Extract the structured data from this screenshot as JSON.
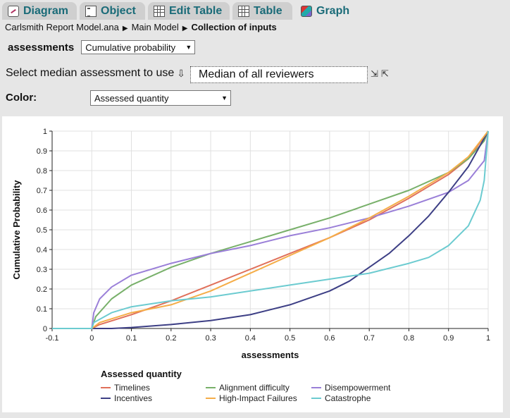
{
  "tabs": [
    {
      "label": "Diagram",
      "icon": "diagram-icon",
      "active": false
    },
    {
      "label": "Object",
      "icon": "object-icon",
      "active": false
    },
    {
      "label": "Edit Table",
      "icon": "table-icon",
      "active": false
    },
    {
      "label": "Table",
      "icon": "table-icon",
      "active": false
    },
    {
      "label": "Graph",
      "icon": "graph-icon",
      "active": true
    }
  ],
  "breadcrumb": {
    "items": [
      "Carlsmith Report Model.ana",
      "Main Model",
      "Collection of inputs"
    ]
  },
  "assessments": {
    "label": "assessments",
    "view_value": "Cumulative probability"
  },
  "median": {
    "label": "Select median assessment to use",
    "value": "Median of all reviewers"
  },
  "color": {
    "label": "Color:",
    "value": "Assessed quantity"
  },
  "chart_data": {
    "type": "line",
    "xlabel": "assessments",
    "ylabel": "Cumulative Probability",
    "xlim": [
      -0.1,
      1
    ],
    "ylim": [
      0,
      1
    ],
    "xticks": [
      "-0.1",
      "0",
      "0.1",
      "0.2",
      "0.3",
      "0.4",
      "0.5",
      "0.6",
      "0.7",
      "0.8",
      "0.9",
      "1"
    ],
    "yticks": [
      "0",
      "0.1",
      "0.2",
      "0.3",
      "0.4",
      "0.5",
      "0.6",
      "0.7",
      "0.8",
      "0.9",
      "1"
    ],
    "grid": true,
    "legend_title": "Assessed quantity",
    "legend_position": "bottom",
    "series": [
      {
        "name": "Timelines",
        "color": "#e0705a",
        "x": [
          -0.1,
          0,
          0.02,
          0.1,
          0.2,
          0.3,
          0.4,
          0.5,
          0.6,
          0.7,
          0.8,
          0.9,
          0.95,
          1
        ],
        "y": [
          0,
          0,
          0.02,
          0.07,
          0.14,
          0.22,
          0.3,
          0.38,
          0.46,
          0.55,
          0.66,
          0.78,
          0.86,
          1.0
        ]
      },
      {
        "name": "Alignment difficulty",
        "color": "#78b06a",
        "x": [
          -0.1,
          0,
          0.01,
          0.05,
          0.1,
          0.2,
          0.3,
          0.4,
          0.5,
          0.6,
          0.7,
          0.8,
          0.9,
          0.95,
          0.99,
          1
        ],
        "y": [
          0,
          0,
          0.06,
          0.15,
          0.22,
          0.31,
          0.38,
          0.44,
          0.5,
          0.56,
          0.63,
          0.7,
          0.79,
          0.86,
          0.95,
          1.0
        ]
      },
      {
        "name": "Disempowerment",
        "color": "#9a7fd8",
        "x": [
          -0.1,
          0,
          0.005,
          0.02,
          0.05,
          0.1,
          0.2,
          0.3,
          0.4,
          0.5,
          0.6,
          0.7,
          0.8,
          0.9,
          0.95,
          0.99,
          1
        ],
        "y": [
          0,
          0,
          0.08,
          0.15,
          0.21,
          0.27,
          0.33,
          0.38,
          0.42,
          0.47,
          0.51,
          0.56,
          0.62,
          0.69,
          0.75,
          0.85,
          1.0
        ]
      },
      {
        "name": "Incentives",
        "color": "#3d3f85",
        "x": [
          -0.1,
          0,
          0.05,
          0.1,
          0.2,
          0.3,
          0.4,
          0.5,
          0.6,
          0.65,
          0.7,
          0.75,
          0.8,
          0.85,
          0.9,
          0.95,
          1
        ],
        "y": [
          0,
          0,
          0.0,
          0.005,
          0.02,
          0.04,
          0.07,
          0.12,
          0.19,
          0.24,
          0.31,
          0.38,
          0.47,
          0.57,
          0.69,
          0.82,
          1.0
        ]
      },
      {
        "name": "High-Impact Failures",
        "color": "#f5ad48",
        "x": [
          -0.1,
          0,
          0.02,
          0.1,
          0.2,
          0.3,
          0.4,
          0.5,
          0.6,
          0.7,
          0.8,
          0.9,
          0.95,
          1
        ],
        "y": [
          0,
          0,
          0.03,
          0.08,
          0.12,
          0.19,
          0.28,
          0.37,
          0.46,
          0.56,
          0.67,
          0.79,
          0.87,
          1.0
        ]
      },
      {
        "name": "Catastrophe",
        "color": "#6ccbd0",
        "x": [
          -0.1,
          0,
          0.005,
          0.05,
          0.1,
          0.2,
          0.3,
          0.4,
          0.5,
          0.6,
          0.7,
          0.8,
          0.85,
          0.9,
          0.95,
          0.98,
          0.99,
          1
        ],
        "y": [
          0,
          0,
          0.03,
          0.08,
          0.11,
          0.14,
          0.16,
          0.19,
          0.22,
          0.25,
          0.28,
          0.33,
          0.36,
          0.42,
          0.52,
          0.65,
          0.75,
          1.0
        ]
      }
    ]
  },
  "colors": {
    "tab_text": "#1a6b78",
    "background": "#e6e6e6",
    "grid": "#e0e0e0"
  }
}
